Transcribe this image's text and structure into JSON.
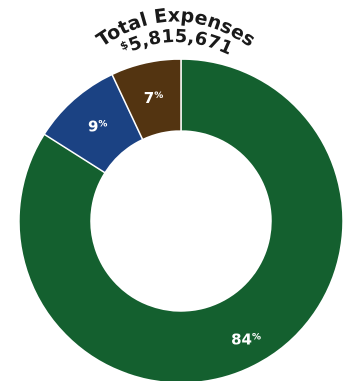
{
  "chart_data": {
    "type": "pie",
    "title": "Total Expenses",
    "total": {
      "currency_symbol": "$",
      "amount": "5,815,671"
    },
    "slices": [
      {
        "label": "84",
        "value": 84,
        "color": "#14602f"
      },
      {
        "label": "9",
        "value": 9,
        "color": "#1b4283"
      },
      {
        "label": "7",
        "value": 7,
        "color": "#533411"
      }
    ],
    "percent_sign": "%"
  }
}
